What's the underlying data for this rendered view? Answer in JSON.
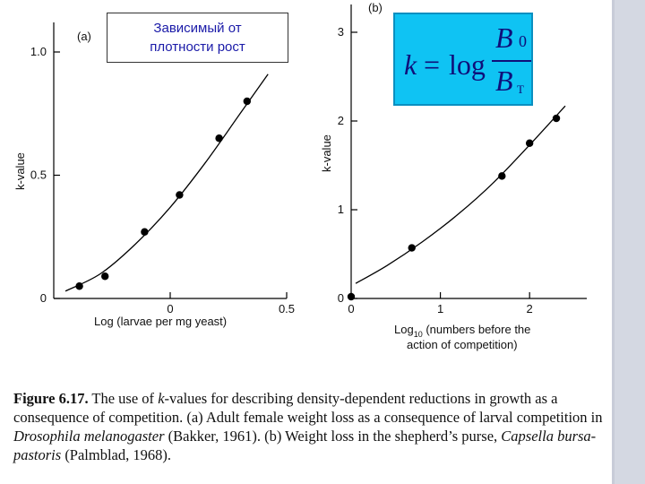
{
  "slide": {
    "title_line1": "Зависимый от",
    "title_line2": "плотности рост",
    "formula": {
      "lhs": "k",
      "equals": "=",
      "log": "log",
      "numerator": "B",
      "numerator_sub": "0",
      "denominator": "B",
      "denominator_sub": "T"
    },
    "caption": {
      "figure_label": "Figure 6.17.",
      "text_1": "The use of ",
      "k_italic": "k",
      "text_2": "-values for describing density-dependent reductions in growth as a consequence of competition. (a) Adult female weight loss as a consequence of larval competition in ",
      "species_1": "Drosophila melanogaster",
      "text_3": " (Bakker, 1961). (b) Weight loss in the shepherd’s purse, ",
      "species_2": "Capsella bursa-pastoris",
      "text_4": " (Palmblad, 1968)."
    },
    "colors": {
      "title_text": "#1a1aa8",
      "formula_bg": "#0fc3f3",
      "formula_text": "#0f0f7a",
      "strip": "#c8ccd8"
    }
  },
  "chart_data": [
    {
      "type": "scatter",
      "panel_label": "(a)",
      "xlabel": "Log (larvae per mg yeast)",
      "ylabel": "k-value",
      "xlim": [
        -0.5,
        0.5
      ],
      "ylim": [
        0,
        1.0
      ],
      "x_ticks": [
        0,
        0.5
      ],
      "x_tick_labels": [
        "0",
        "0.5"
      ],
      "y_ticks": [
        0,
        0.5,
        1.0
      ],
      "y_tick_labels": [
        "0",
        "0.5",
        "1.0"
      ],
      "points": [
        {
          "x": -0.39,
          "y": 0.05
        },
        {
          "x": -0.28,
          "y": 0.09
        },
        {
          "x": -0.11,
          "y": 0.27
        },
        {
          "x": 0.04,
          "y": 0.42
        },
        {
          "x": 0.21,
          "y": 0.65
        },
        {
          "x": 0.33,
          "y": 0.8
        }
      ],
      "fit_curve": [
        {
          "x": -0.45,
          "y": 0.03
        },
        {
          "x": -0.3,
          "y": 0.1
        },
        {
          "x": -0.15,
          "y": 0.22
        },
        {
          "x": 0.0,
          "y": 0.37
        },
        {
          "x": 0.15,
          "y": 0.55
        },
        {
          "x": 0.3,
          "y": 0.75
        },
        {
          "x": 0.42,
          "y": 0.91
        }
      ]
    },
    {
      "type": "scatter",
      "panel_label": "(b)",
      "xlabel_line1": "Log",
      "xlabel_sub": "10",
      "xlabel_line1_rest": " (numbers before the",
      "xlabel_line2": "action of competition)",
      "ylabel": "k-value",
      "xlim": [
        0,
        2.4
      ],
      "ylim": [
        0,
        3.0
      ],
      "x_ticks": [
        0,
        1,
        2
      ],
      "x_tick_labels": [
        "0",
        "1",
        "2"
      ],
      "y_ticks": [
        0,
        1,
        2,
        3
      ],
      "y_tick_labels": [
        "0",
        "1",
        "2",
        "3"
      ],
      "points": [
        {
          "x": 0.0,
          "y": 0.02
        },
        {
          "x": 0.68,
          "y": 0.57
        },
        {
          "x": 1.69,
          "y": 1.38
        },
        {
          "x": 2.0,
          "y": 1.75
        },
        {
          "x": 2.3,
          "y": 2.03
        }
      ],
      "fit_curve": [
        {
          "x": 0.05,
          "y": 0.17
        },
        {
          "x": 0.4,
          "y": 0.37
        },
        {
          "x": 0.8,
          "y": 0.64
        },
        {
          "x": 1.2,
          "y": 0.95
        },
        {
          "x": 1.6,
          "y": 1.31
        },
        {
          "x": 2.0,
          "y": 1.73
        },
        {
          "x": 2.4,
          "y": 2.17
        }
      ]
    }
  ]
}
